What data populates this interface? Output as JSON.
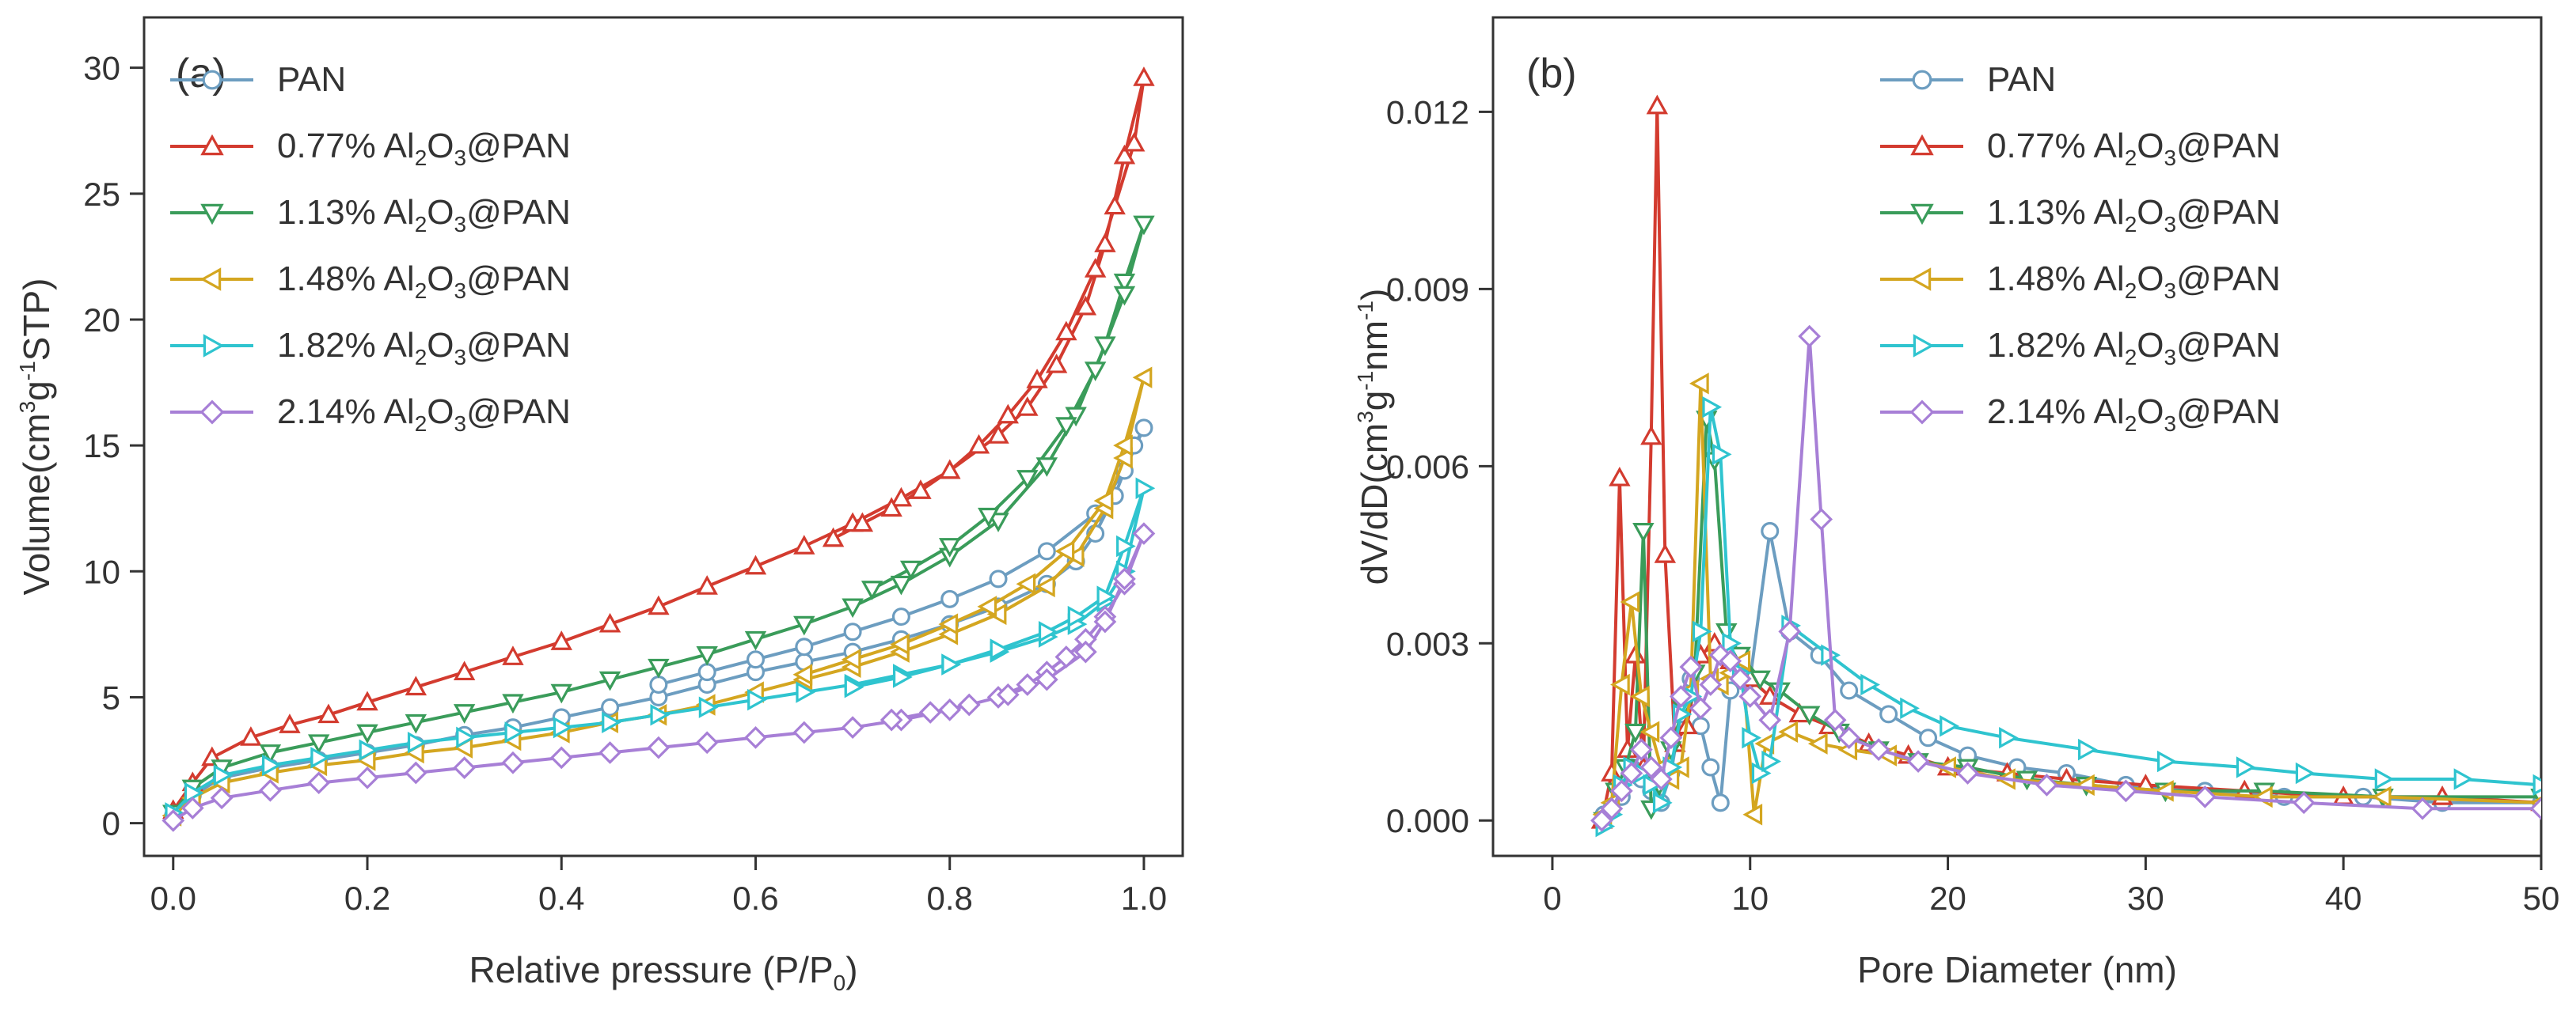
{
  "chart_data": [
    {
      "panel": "(a)",
      "type": "line",
      "xlabel": {
        "main": "Relative pressure (P/P",
        "sub": "0",
        "tail": ")"
      },
      "ylabel": {
        "main": "Volume(cm",
        "sup1": "3",
        "mid": "g",
        "sup2": "-1",
        "tail": "STP)"
      },
      "xlim": [
        -0.03,
        1.04
      ],
      "ylim": [
        -1.3,
        32
      ],
      "xticks": [
        0.0,
        0.2,
        0.4,
        0.6,
        0.8,
        1.0
      ],
      "xtick_labels": [
        "0.0",
        "0.2",
        "0.4",
        "0.6",
        "0.8",
        "1.0"
      ],
      "yticks": [
        0,
        5,
        10,
        15,
        20,
        25,
        30
      ],
      "ytick_labels": [
        "0",
        "5",
        "10",
        "15",
        "20",
        "25",
        "30"
      ],
      "series": [
        {
          "name": "PAN",
          "color": "#6c9dc0",
          "marker": "circle",
          "x": [
            0.0,
            0.02,
            0.05,
            0.1,
            0.15,
            0.2,
            0.25,
            0.3,
            0.35,
            0.4,
            0.45,
            0.5,
            0.55,
            0.6,
            0.65,
            0.7,
            0.75,
            0.8,
            0.85,
            0.9,
            0.93,
            0.95,
            0.97,
            0.99,
            1.0,
            0.98,
            0.95,
            0.9,
            0.85,
            0.8,
            0.75,
            0.7,
            0.65,
            0.6,
            0.55,
            0.5
          ],
          "y": [
            0.3,
            1.1,
            1.8,
            2.2,
            2.5,
            2.8,
            3.1,
            3.5,
            3.8,
            4.2,
            4.6,
            5.0,
            5.5,
            6.0,
            6.4,
            6.8,
            7.3,
            7.9,
            8.6,
            9.5,
            10.4,
            11.5,
            13.0,
            15.0,
            15.7,
            14.0,
            12.3,
            10.8,
            9.7,
            8.9,
            8.2,
            7.6,
            7.0,
            6.5,
            6.0,
            5.5
          ]
        },
        {
          "name": "0.77% Al2O3@PAN",
          "label": {
            "main": "0.77% Al",
            "s1": "2",
            "mid": "O",
            "s2": "3",
            "tail": "@PAN"
          },
          "color": "#d33b2f",
          "marker": "triangle-up",
          "x": [
            0.0,
            0.02,
            0.04,
            0.08,
            0.12,
            0.16,
            0.2,
            0.25,
            0.3,
            0.35,
            0.4,
            0.45,
            0.5,
            0.55,
            0.6,
            0.65,
            0.7,
            0.75,
            0.8,
            0.85,
            0.88,
            0.91,
            0.94,
            0.96,
            0.98,
            1.0,
            0.99,
            0.97,
            0.95,
            0.92,
            0.89,
            0.86,
            0.83,
            0.8,
            0.77,
            0.74,
            0.71,
            0.68
          ],
          "y": [
            0.5,
            1.6,
            2.6,
            3.4,
            3.9,
            4.3,
            4.8,
            5.4,
            6.0,
            6.6,
            7.2,
            7.9,
            8.6,
            9.4,
            10.2,
            11.0,
            11.9,
            12.9,
            14.0,
            15.4,
            16.5,
            18.2,
            20.5,
            23.0,
            26.5,
            29.6,
            27.0,
            24.5,
            22.0,
            19.5,
            17.6,
            16.2,
            15.0,
            14.0,
            13.2,
            12.5,
            11.9,
            11.3
          ]
        },
        {
          "name": "1.13% Al2O3@PAN",
          "label": {
            "main": "1.13% Al",
            "s1": "2",
            "mid": "O",
            "s2": "3",
            "tail": "@PAN"
          },
          "color": "#3a9c5a",
          "marker": "triangle-down",
          "x": [
            0.0,
            0.02,
            0.05,
            0.1,
            0.15,
            0.2,
            0.25,
            0.3,
            0.35,
            0.4,
            0.45,
            0.5,
            0.55,
            0.6,
            0.65,
            0.7,
            0.75,
            0.8,
            0.85,
            0.9,
            0.93,
            0.96,
            0.98,
            1.0,
            0.98,
            0.95,
            0.92,
            0.88,
            0.84,
            0.8,
            0.76,
            0.72
          ],
          "y": [
            0.4,
            1.4,
            2.2,
            2.8,
            3.2,
            3.6,
            4.0,
            4.4,
            4.8,
            5.2,
            5.7,
            6.2,
            6.7,
            7.3,
            7.9,
            8.6,
            9.5,
            10.6,
            12.0,
            14.2,
            16.2,
            19.0,
            21.5,
            23.8,
            21.0,
            18.0,
            15.8,
            13.7,
            12.2,
            11.0,
            10.1,
            9.3
          ]
        },
        {
          "name": "1.48% Al2O3@PAN",
          "label": {
            "main": "1.48% Al",
            "s1": "2",
            "mid": "O",
            "s2": "3",
            "tail": "@PAN"
          },
          "color": "#d4a620",
          "marker": "triangle-left",
          "x": [
            0.0,
            0.02,
            0.05,
            0.1,
            0.15,
            0.2,
            0.25,
            0.3,
            0.35,
            0.4,
            0.45,
            0.5,
            0.55,
            0.6,
            0.65,
            0.7,
            0.75,
            0.8,
            0.85,
            0.9,
            0.93,
            0.96,
            0.98,
            1.0,
            0.98,
            0.96,
            0.92,
            0.88,
            0.84,
            0.8,
            0.75,
            0.7,
            0.65
          ],
          "y": [
            0.3,
            1.0,
            1.6,
            2.0,
            2.3,
            2.5,
            2.8,
            3.0,
            3.3,
            3.6,
            4.0,
            4.3,
            4.7,
            5.2,
            5.7,
            6.2,
            6.8,
            7.5,
            8.3,
            9.4,
            10.6,
            12.5,
            14.5,
            17.7,
            15.0,
            12.8,
            10.8,
            9.5,
            8.6,
            7.9,
            7.1,
            6.5,
            5.9
          ]
        },
        {
          "name": "1.82% Al2O3@PAN",
          "label": {
            "main": "1.82% Al",
            "s1": "2",
            "mid": "O",
            "s2": "3",
            "tail": "@PAN"
          },
          "color": "#2fc4cf",
          "marker": "triangle-right",
          "x": [
            0.0,
            0.02,
            0.05,
            0.1,
            0.15,
            0.2,
            0.25,
            0.3,
            0.35,
            0.4,
            0.45,
            0.5,
            0.55,
            0.6,
            0.65,
            0.7,
            0.75,
            0.8,
            0.85,
            0.9,
            0.93,
            0.96,
            0.98,
            1.0,
            0.98,
            0.96,
            0.93,
            0.9,
            0.85,
            0.8,
            0.75,
            0.7
          ],
          "y": [
            0.4,
            1.2,
            1.9,
            2.3,
            2.6,
            2.9,
            3.2,
            3.4,
            3.6,
            3.8,
            4.0,
            4.3,
            4.6,
            4.9,
            5.2,
            5.5,
            5.9,
            6.3,
            6.8,
            7.4,
            7.9,
            8.8,
            10.0,
            13.3,
            11.0,
            9.0,
            8.2,
            7.6,
            6.9,
            6.3,
            5.8,
            5.4
          ]
        },
        {
          "name": "2.14% Al2O3@PAN",
          "label": {
            "main": "2.14% Al",
            "s1": "2",
            "mid": "O",
            "s2": "3",
            "tail": "@PAN"
          },
          "color": "#a77fd6",
          "marker": "diamond",
          "x": [
            0.0,
            0.02,
            0.05,
            0.1,
            0.15,
            0.2,
            0.25,
            0.3,
            0.35,
            0.4,
            0.45,
            0.5,
            0.55,
            0.6,
            0.65,
            0.7,
            0.75,
            0.8,
            0.85,
            0.88,
            0.9,
            0.92,
            0.94,
            0.96,
            0.98,
            1.0,
            0.98,
            0.96,
            0.94,
            0.9,
            0.86,
            0.82,
            0.78,
            0.74
          ],
          "y": [
            0.1,
            0.6,
            1.0,
            1.3,
            1.6,
            1.8,
            2.0,
            2.2,
            2.4,
            2.6,
            2.8,
            3.0,
            3.2,
            3.4,
            3.6,
            3.8,
            4.1,
            4.5,
            5.0,
            5.5,
            6.0,
            6.6,
            7.3,
            8.2,
            9.5,
            11.5,
            9.7,
            8.0,
            6.8,
            5.7,
            5.1,
            4.7,
            4.4,
            4.1
          ]
        }
      ]
    },
    {
      "panel": "(b)",
      "type": "line",
      "xlabel": {
        "main": "Pore Diameter (nm)"
      },
      "ylabel": {
        "main": "dV/dD(cm",
        "sup1": "3",
        "mid": "g",
        "sup2": "-1",
        "mid2": "nm",
        "sup3": "-1",
        "tail": ")"
      },
      "xlim": [
        -3,
        50
      ],
      "ylim": [
        -0.0006,
        0.0136
      ],
      "xticks": [
        0,
        10,
        20,
        30,
        40,
        50
      ],
      "xtick_labels": [
        "0",
        "10",
        "20",
        "30",
        "40",
        "50"
      ],
      "yticks": [
        0.0,
        0.003,
        0.006,
        0.009,
        0.012
      ],
      "ytick_labels": [
        "0.000",
        "0.003",
        "0.006",
        "0.009",
        "0.012"
      ],
      "series": [
        {
          "name": "PAN",
          "color": "#6c9dc0",
          "marker": "circle",
          "x": [
            2.6,
            3.0,
            3.5,
            4.0,
            4.5,
            5.0,
            5.5,
            6.0,
            6.5,
            7.0,
            7.5,
            8.0,
            8.5,
            9.0,
            9.5,
            10.0,
            11.0,
            12.0,
            13.5,
            15.0,
            17.0,
            19.0,
            21.0,
            23.5,
            26.0,
            29.0,
            33.0,
            37.0,
            41.0,
            45.0,
            50.0
          ],
          "y": [
            0.0001,
            0.0002,
            0.0004,
            0.0009,
            0.0007,
            0.0005,
            0.0003,
            0.0008,
            0.0018,
            0.0024,
            0.0016,
            0.0009,
            0.0003,
            0.0022,
            0.0027,
            0.0024,
            0.0049,
            0.0032,
            0.0028,
            0.0022,
            0.0018,
            0.0014,
            0.0011,
            0.0009,
            0.0008,
            0.0006,
            0.0005,
            0.0004,
            0.0004,
            0.0003,
            0.0003
          ]
        },
        {
          "name": "0.77% Al2O3@PAN",
          "color": "#d33b2f",
          "marker": "triangle-up",
          "x": [
            2.5,
            3.0,
            3.4,
            3.8,
            4.2,
            4.6,
            5.0,
            5.3,
            5.7,
            6.2,
            6.8,
            7.5,
            8.2,
            9.0,
            10.0,
            11.0,
            12.5,
            14.0,
            16.0,
            18.0,
            20.0,
            23.0,
            26.0,
            30.0,
            35.0,
            40.0,
            45.0,
            50.0
          ],
          "y": [
            0.0,
            0.0008,
            0.0058,
            0.0012,
            0.0028,
            0.0009,
            0.0065,
            0.0121,
            0.0045,
            0.0013,
            0.0016,
            0.0028,
            0.003,
            0.0027,
            0.0024,
            0.0021,
            0.0018,
            0.0016,
            0.0013,
            0.0011,
            0.0009,
            0.0008,
            0.0007,
            0.0006,
            0.0005,
            0.0004,
            0.0004,
            0.0003
          ]
        },
        {
          "name": "1.13% Al2O3@PAN",
          "color": "#3a9c5a",
          "marker": "triangle-down",
          "x": [
            2.6,
            3.2,
            3.7,
            4.2,
            4.6,
            5.0,
            5.4,
            6.0,
            6.6,
            7.2,
            7.8,
            8.2,
            8.8,
            9.5,
            10.5,
            11.5,
            13.0,
            14.5,
            16.5,
            18.5,
            21.0,
            24.0,
            27.0,
            31.0,
            36.0,
            42.0,
            50.0
          ],
          "y": [
            0.0,
            0.0005,
            0.0009,
            0.0015,
            0.0049,
            0.0002,
            0.0006,
            0.0012,
            0.0019,
            0.0025,
            0.0068,
            0.0061,
            0.0032,
            0.0028,
            0.0024,
            0.0022,
            0.0018,
            0.0015,
            0.0012,
            0.001,
            0.0009,
            0.0007,
            0.0006,
            0.0005,
            0.0005,
            0.0004,
            0.0004
          ]
        },
        {
          "name": "1.48% Al2O3@PAN",
          "color": "#d4a620",
          "marker": "triangle-left",
          "x": [
            2.6,
            3.0,
            3.5,
            4.0,
            4.5,
            5.0,
            5.5,
            6.0,
            6.5,
            7.0,
            7.5,
            8.0,
            8.5,
            9.0,
            9.6,
            10.2,
            10.8,
            12.0,
            13.5,
            15.0,
            17.0,
            20.0,
            23.0,
            27.0,
            31.0,
            36.0,
            42.0,
            50.0
          ],
          "y": [
            0.0001,
            0.0003,
            0.0023,
            0.0037,
            0.0021,
            0.0015,
            0.0009,
            0.0007,
            0.0009,
            0.0022,
            0.0074,
            0.0024,
            0.0023,
            0.0025,
            0.0027,
            0.0001,
            0.0013,
            0.0015,
            0.0013,
            0.0012,
            0.0011,
            0.0009,
            0.0007,
            0.0006,
            0.0005,
            0.0004,
            0.0004,
            0.0003
          ]
        },
        {
          "name": "1.82% Al2O3@PAN",
          "color": "#2fc4cf",
          "marker": "triangle-right",
          "x": [
            2.6,
            3.0,
            3.5,
            4.0,
            4.5,
            5.0,
            5.5,
            6.0,
            6.5,
            7.0,
            7.5,
            8.0,
            8.5,
            9.0,
            9.5,
            10.0,
            10.5,
            11.0,
            12.0,
            14.0,
            16.0,
            18.0,
            20.0,
            23.0,
            27.0,
            31.0,
            35.0,
            38.0,
            42.0,
            46.0,
            50.0
          ],
          "y": [
            -0.0001,
            0.0001,
            0.0006,
            0.0009,
            0.0008,
            0.0006,
            0.0003,
            0.0009,
            0.0018,
            0.0021,
            0.0032,
            0.007,
            0.0062,
            0.003,
            0.0025,
            0.0014,
            0.0008,
            0.001,
            0.0033,
            0.0028,
            0.0023,
            0.0019,
            0.0016,
            0.0014,
            0.0012,
            0.001,
            0.0009,
            0.0008,
            0.0007,
            0.0007,
            0.0006
          ]
        },
        {
          "name": "2.14% Al2O3@PAN",
          "color": "#a77fd6",
          "marker": "diamond",
          "x": [
            2.5,
            3.0,
            3.5,
            4.0,
            4.5,
            5.0,
            5.5,
            6.0,
            6.5,
            7.0,
            7.5,
            8.0,
            8.5,
            9.0,
            9.5,
            10.0,
            11.0,
            12.0,
            13.0,
            13.6,
            14.3,
            15.0,
            16.5,
            18.5,
            21.0,
            25.0,
            29.0,
            33.0,
            38.0,
            44.0,
            50.0
          ],
          "y": [
            0.0,
            0.0002,
            0.0005,
            0.0008,
            0.0012,
            0.0009,
            0.0007,
            0.0014,
            0.0021,
            0.0026,
            0.0019,
            0.0023,
            0.0028,
            0.0027,
            0.0024,
            0.0021,
            0.0017,
            0.0032,
            0.0082,
            0.0051,
            0.0017,
            0.0014,
            0.0012,
            0.001,
            0.0008,
            0.0006,
            0.0005,
            0.0004,
            0.0003,
            0.0002,
            0.0002
          ]
        }
      ]
    }
  ]
}
